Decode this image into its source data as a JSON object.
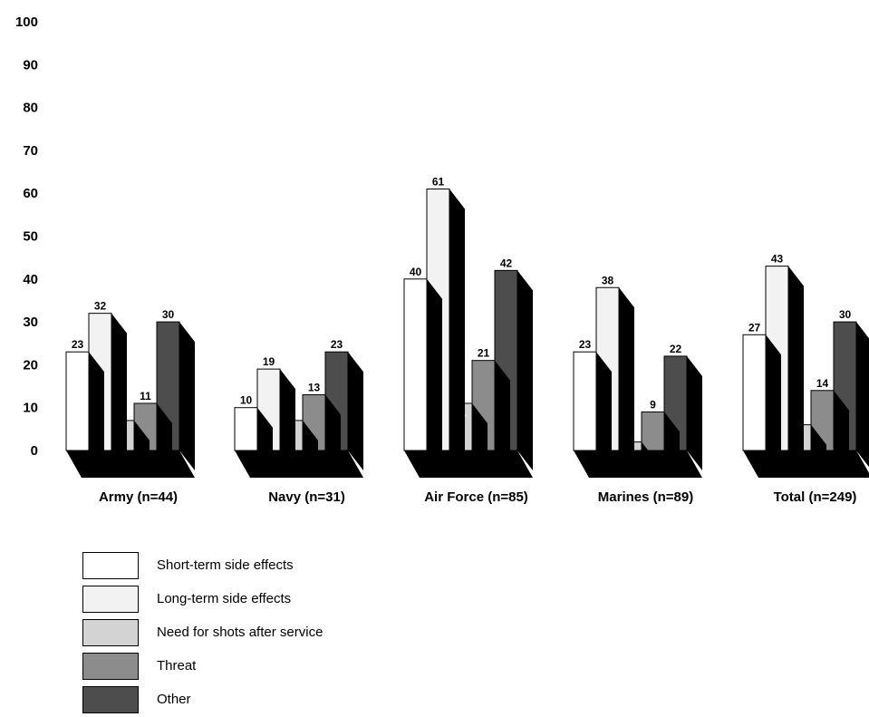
{
  "chart_data": {
    "type": "bar",
    "ylim": [
      0,
      100
    ],
    "yticks": [
      0,
      10,
      20,
      30,
      40,
      50,
      60,
      70,
      80,
      90,
      100
    ],
    "categories": [
      "Army (n=44)",
      "Navy (n=31)",
      "Air Force (n=85)",
      "Marines (n=89)",
      "Total (n=249)"
    ],
    "series": [
      {
        "name": "Short-term side effects",
        "values": [
          23,
          10,
          40,
          23,
          27
        ],
        "color": "#ffffff"
      },
      {
        "name": "Long-term side effects",
        "values": [
          32,
          19,
          61,
          38,
          43
        ],
        "color": "#f2f2f2"
      },
      {
        "name": "Need for shots after service",
        "values": [
          7,
          7,
          11,
          2,
          6
        ],
        "color": "#d3d3d3"
      },
      {
        "name": "Threat",
        "values": [
          11,
          13,
          21,
          9,
          14
        ],
        "color": "#8c8c8c"
      },
      {
        "name": "Other",
        "values": [
          30,
          23,
          42,
          22,
          30
        ],
        "color": "#4d4d4d"
      }
    ],
    "legend": "bottom-left",
    "grid": false,
    "style": "3d-bars"
  }
}
